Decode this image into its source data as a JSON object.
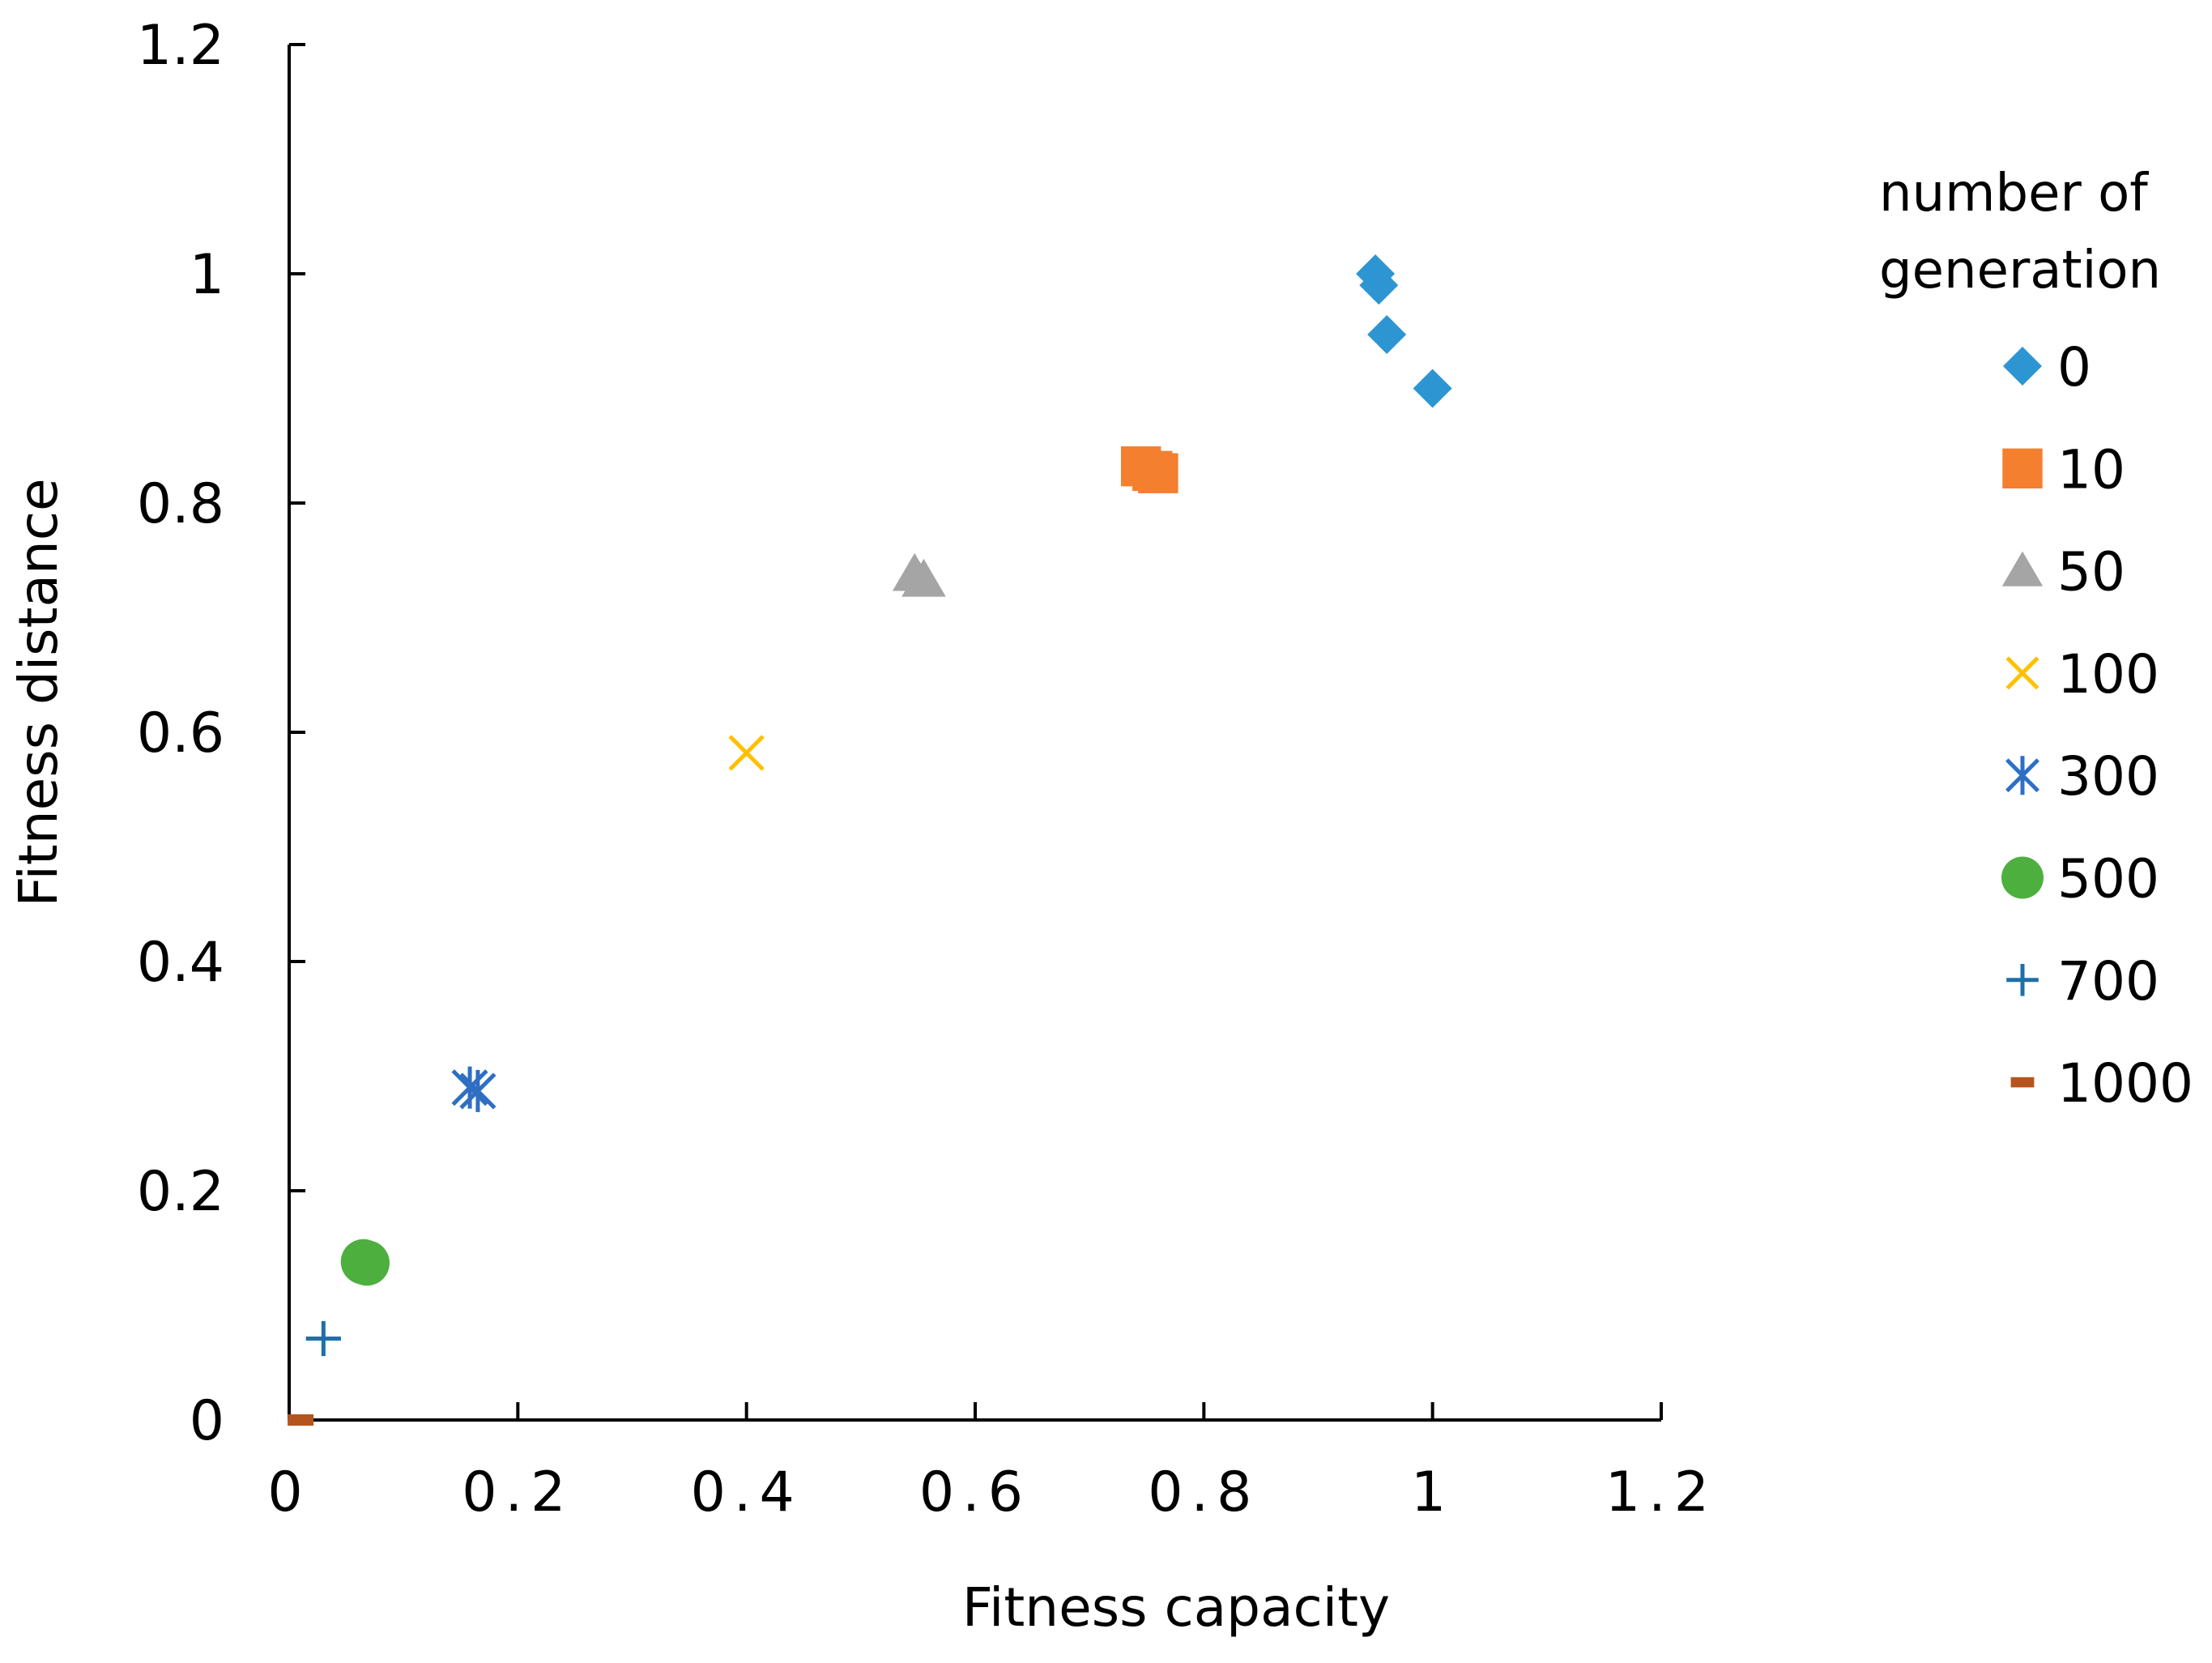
{
  "chart_data": {
    "type": "scatter",
    "title": "",
    "xlabel": "Fitness capacity",
    "ylabel": "Fitness distance",
    "xlim": [
      0,
      1.2
    ],
    "ylim": [
      0,
      1.2
    ],
    "xticks": [
      "0",
      "0.2",
      "0.4",
      "0.6",
      "0.8",
      "1",
      "1.2"
    ],
    "yticks": [
      "0",
      "0.2",
      "0.4",
      "0.6",
      "0.8",
      "1",
      "1.2"
    ],
    "grid": false,
    "legend": {
      "title_line1": "number of",
      "title_line2": "generation",
      "placement": "right"
    },
    "series": [
      {
        "name": "0",
        "marker": "diamond",
        "color": "#2E95D3",
        "points": [
          [
            0.95,
            1.0
          ],
          [
            0.953,
            0.99
          ],
          [
            0.96,
            0.947
          ],
          [
            1.0,
            0.9
          ]
        ]
      },
      {
        "name": "10",
        "marker": "square",
        "color": "#F47F2F",
        "points": [
          [
            0.745,
            0.832
          ],
          [
            0.755,
            0.828
          ],
          [
            0.76,
            0.826
          ]
        ]
      },
      {
        "name": "50",
        "marker": "triangle",
        "color": "#A5A5A5",
        "points": [
          [
            0.547,
            0.738
          ],
          [
            0.555,
            0.733
          ]
        ]
      },
      {
        "name": "100",
        "marker": "x",
        "color": "#FFC000",
        "points": [
          [
            0.4,
            0.582
          ]
        ]
      },
      {
        "name": "300",
        "marker": "asterisk",
        "color": "#2E6FC4",
        "points": [
          [
            0.158,
            0.29
          ],
          [
            0.165,
            0.287
          ]
        ]
      },
      {
        "name": "500",
        "marker": "circle",
        "color": "#4DAF3E",
        "points": [
          [
            0.065,
            0.138
          ],
          [
            0.068,
            0.137
          ]
        ]
      },
      {
        "name": "700",
        "marker": "plus",
        "color": "#1F6FA8",
        "points": [
          [
            0.03,
            0.071
          ]
        ]
      },
      {
        "name": "1000",
        "marker": "dash",
        "color": "#B5551E",
        "points": [
          [
            0.01,
            0.0
          ]
        ]
      }
    ]
  }
}
